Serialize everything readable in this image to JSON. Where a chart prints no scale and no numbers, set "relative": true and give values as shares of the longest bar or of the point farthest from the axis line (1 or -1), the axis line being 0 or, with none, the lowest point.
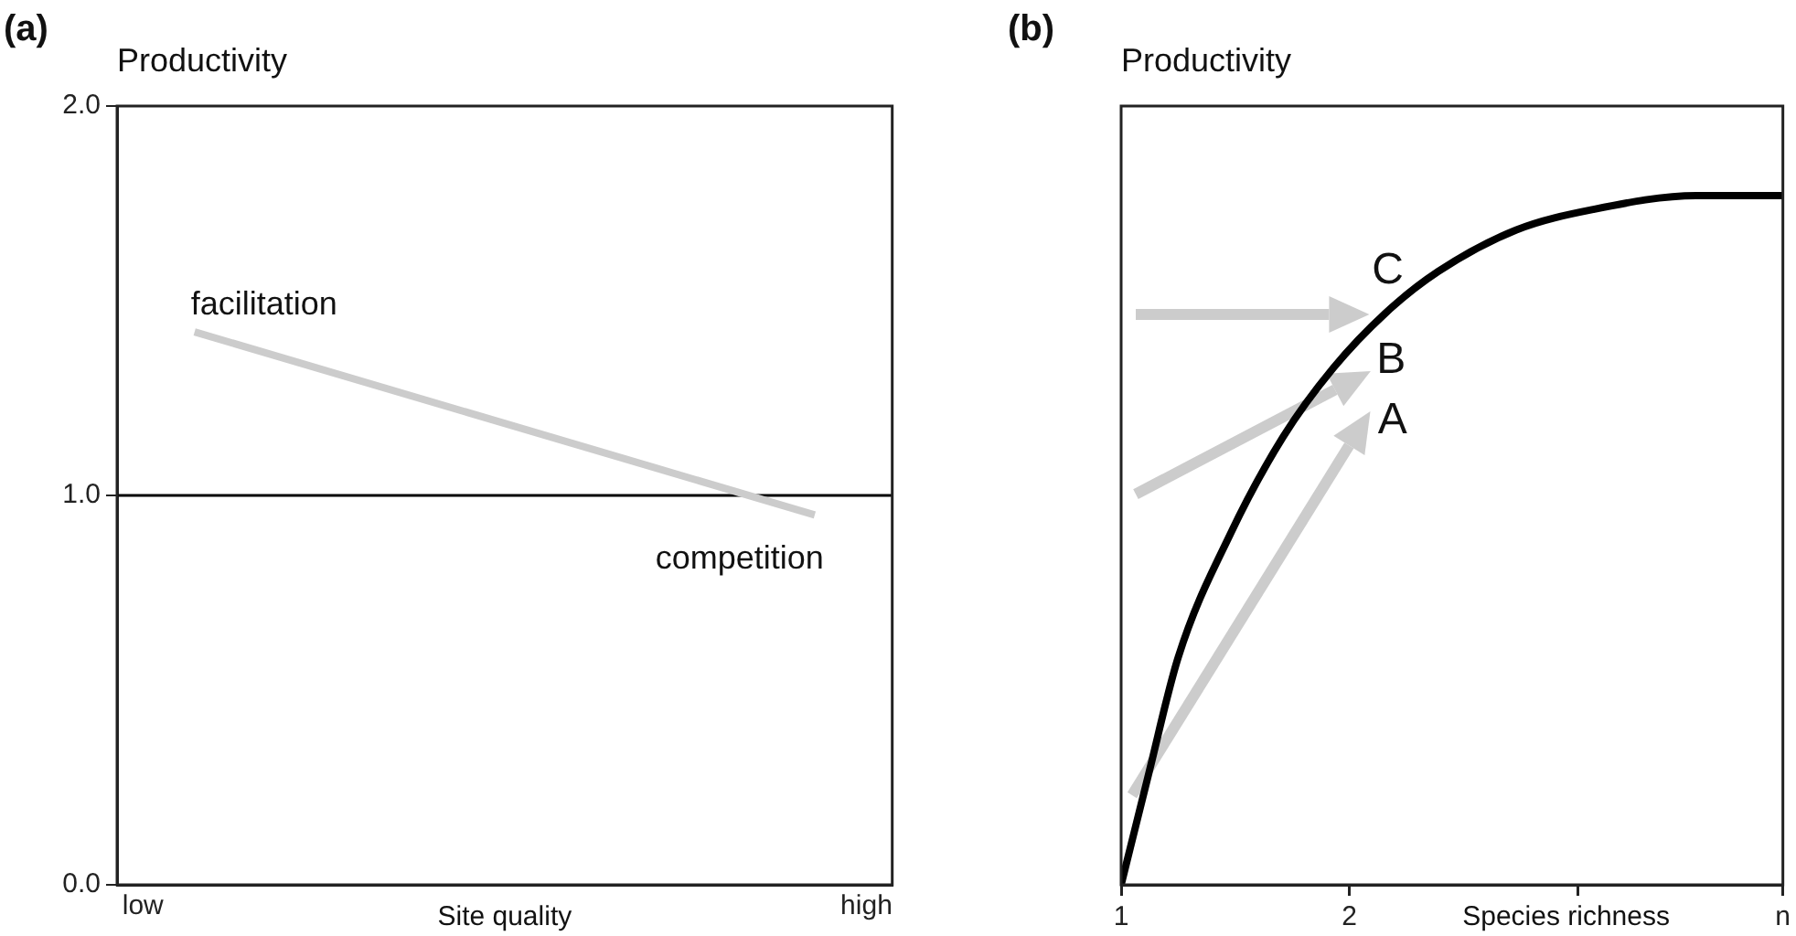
{
  "chart_data": [
    {
      "type": "line",
      "title": "(a)",
      "ylabel": "Productivity",
      "xlabel": "Site quality",
      "categories": [
        "low",
        null,
        null,
        null,
        null,
        null,
        null,
        null,
        null,
        null,
        null,
        null,
        null,
        null,
        "high"
      ],
      "ylim": [
        0,
        2
      ],
      "yticks": [
        {
          "value": 0,
          "label": "0.0"
        },
        {
          "value": 1,
          "label": "1.0"
        },
        {
          "value": 2,
          "label": "2.0"
        }
      ],
      "series": [
        {
          "color": "#cccccc",
          "values": [
            null,
            1.42,
            null,
            null,
            null,
            null,
            null,
            null,
            null,
            null,
            null,
            null,
            null,
            0.95,
            null
          ]
        }
      ],
      "ref_lines": [
        {
          "axis": "y",
          "value": 1,
          "color": "#000000"
        }
      ],
      "annotations": [
        "facilitation",
        "competition"
      ]
    },
    {
      "type": "line",
      "title": "(b)",
      "ylabel": "Productivity",
      "xlabel": "Species richness",
      "relative": true,
      "xlim": [
        1,
        3.9
      ],
      "xticks": [
        1,
        2,
        {
          "value": 3,
          "label": null
        },
        {
          "value": 3.9,
          "label": "n"
        }
      ],
      "series": [
        {
          "color": "#000000",
          "x": [
            1,
            1.12,
            1.25,
            1.48,
            1.71,
            1.93,
            2.16,
            2.39,
            2.73,
            3.07,
            3.52,
            3.9
          ],
          "values": [
            0,
            0.16,
            0.33,
            0.51,
            0.65,
            0.75,
            0.83,
            0.89,
            0.95,
            0.98,
            1.0,
            1.0
          ]
        }
      ],
      "annotations": [
        "A",
        "B",
        "C"
      ]
    }
  ]
}
